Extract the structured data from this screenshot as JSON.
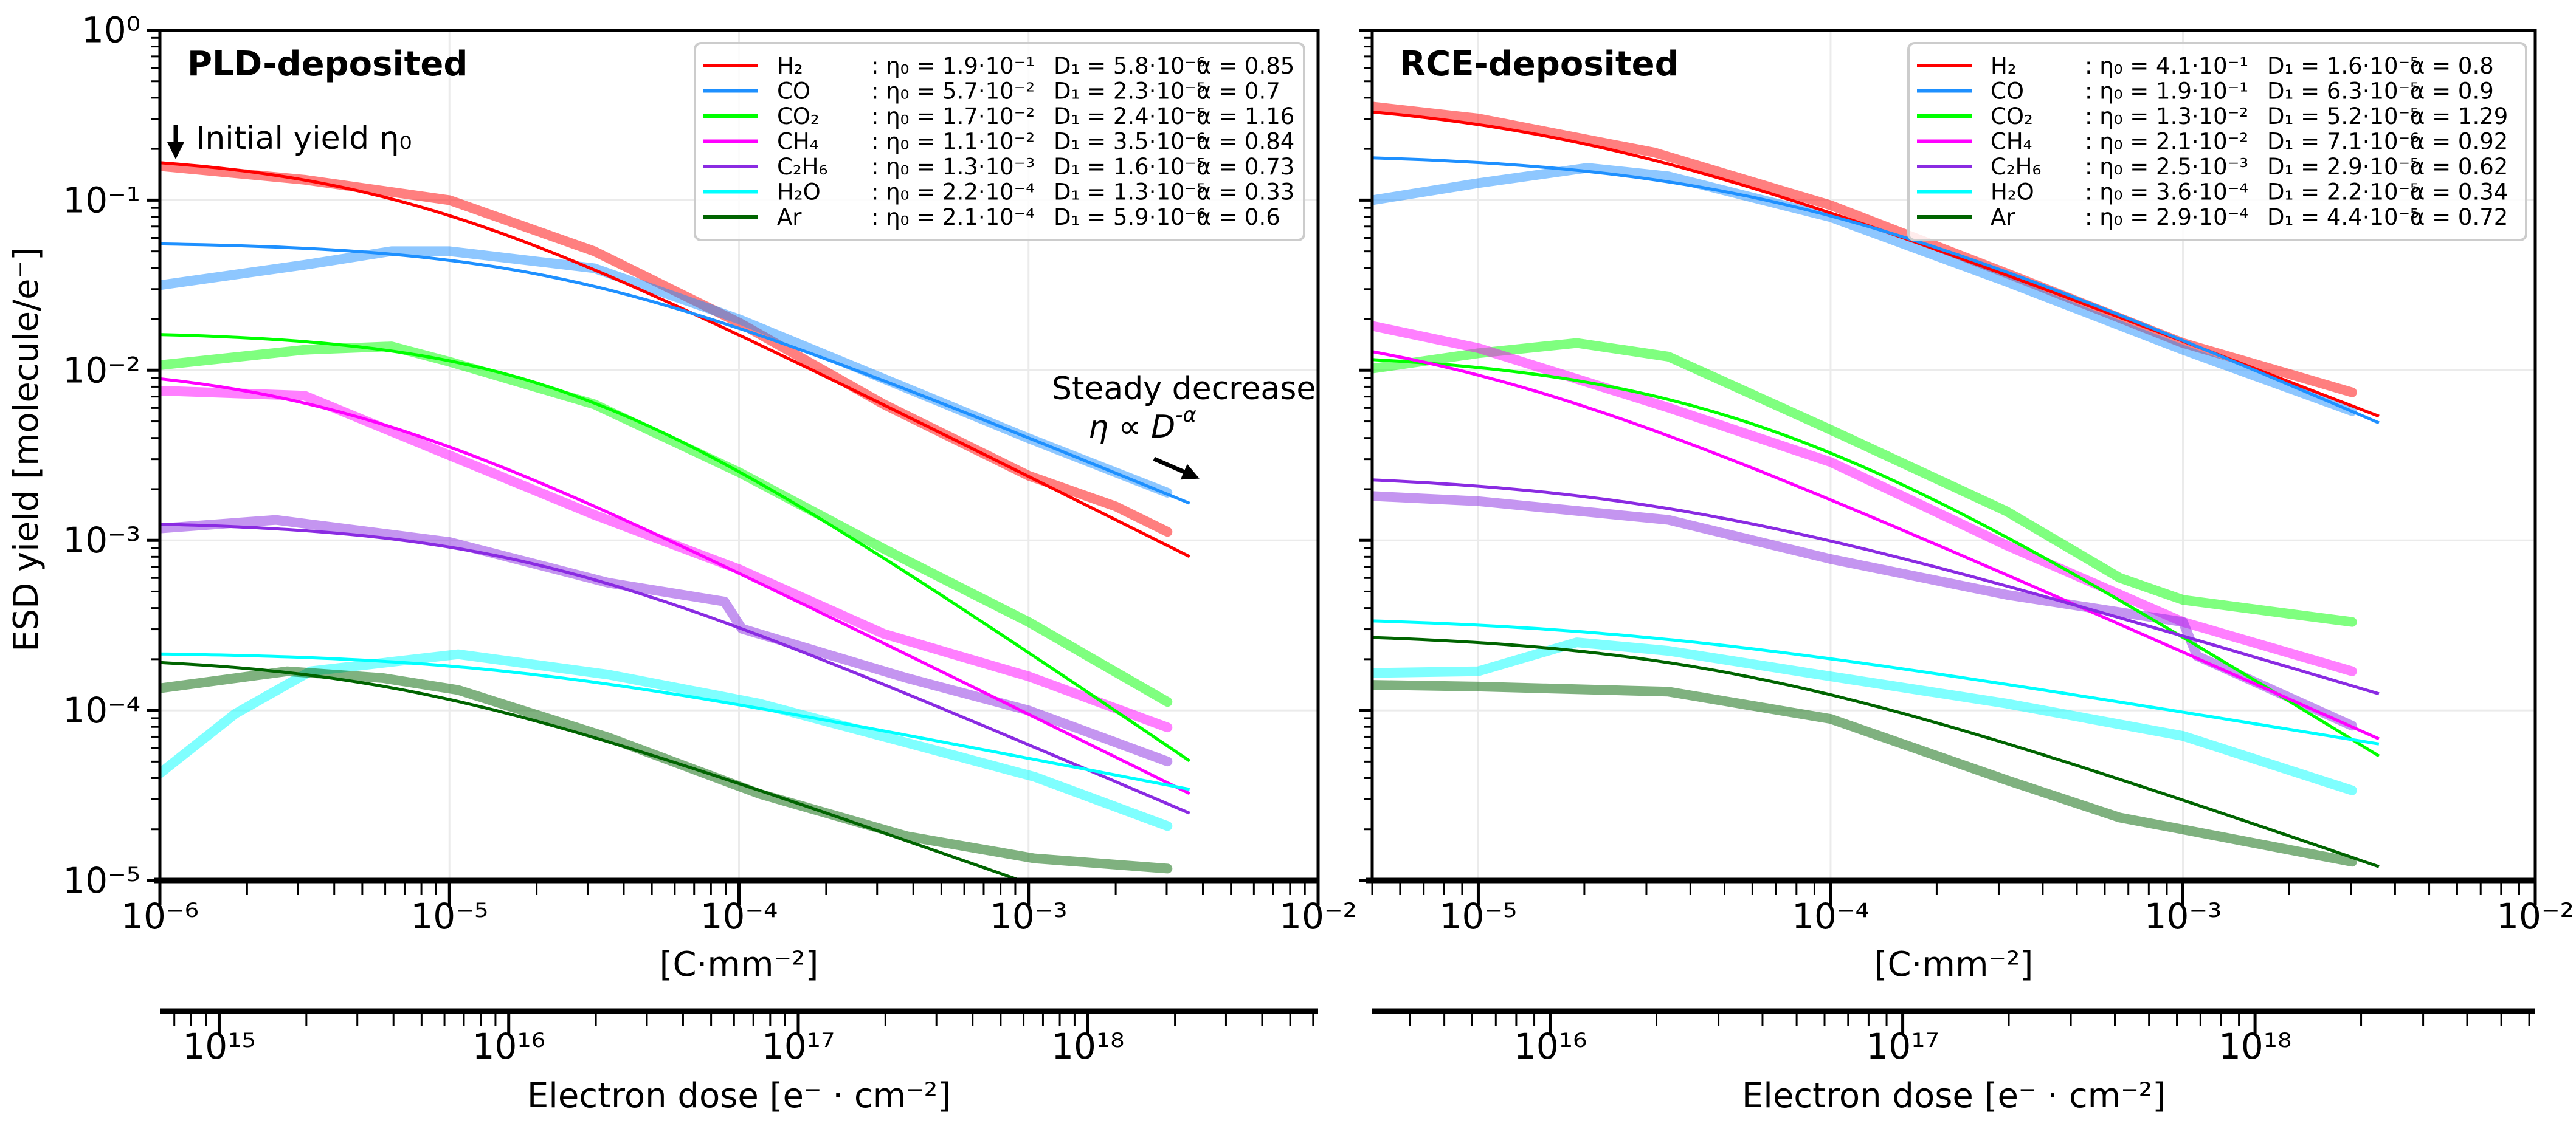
{
  "figure": {
    "ylabel": "ESD yield  [molecule/e⁻]",
    "annotations": {
      "initial_yield": "Initial yield η₀",
      "steady_decrease": "Steady decrease",
      "power_law": "η ∝ D",
      "power_law_exp": "-α"
    }
  },
  "chart_data": [
    {
      "type": "line",
      "title": "PLD-deposited",
      "xscale": "log",
      "yscale": "log",
      "xlim": [
        1e-06,
        0.01
      ],
      "ylim": [
        1e-05,
        1
      ],
      "xlabel": "[C·mm⁻²]",
      "ylabel": "ESD yield  [molecule/e⁻]",
      "grid": true,
      "legend_placement": "top-right",
      "fit_model": "eta = eta0 / (1 + D/D1)^alpha",
      "xtick_labels": [
        "10⁻⁶",
        "10⁻⁵",
        "10⁻⁴",
        "10⁻³",
        "10⁻²"
      ],
      "xtick_exponents": [
        -6,
        -5,
        -4,
        -3,
        -2
      ],
      "ytick_labels": [
        "10⁰",
        "10⁻¹",
        "10⁻²",
        "10⁻³",
        "10⁻⁴",
        "10⁻⁵"
      ],
      "ytick_exponents": [
        0,
        -1,
        -2,
        -3,
        -4,
        -5
      ],
      "secondary_x": {
        "label": "Electron dose [e⁻ · cm⁻²]",
        "conversion_factor": 6.242e+20,
        "tick_labels": [
          "10¹⁵",
          "10¹⁶",
          "10¹⁷",
          "10¹⁸"
        ],
        "tick_exponents": [
          15,
          16,
          17,
          18
        ]
      },
      "fit_xmax": 0.0036,
      "series": [
        {
          "name": "H₂",
          "color": "#ff0000",
          "eta0": 0.19,
          "D1": 5.8e-06,
          "alpha": 0.85,
          "eta0_label": "1.9·10⁻¹",
          "D1_label": "5.8·10⁻⁶",
          "alpha_label": "0.85",
          "measured_log10": [
            [
              -6,
              -0.8
            ],
            [
              -5.5,
              -0.88
            ],
            [
              -5,
              -1.0
            ],
            [
              -4.5,
              -1.3
            ],
            [
              -4,
              -1.72
            ],
            [
              -3.5,
              -2.2
            ],
            [
              -3,
              -2.62
            ],
            [
              -2.7,
              -2.8
            ],
            [
              -2.52,
              -2.95
            ]
          ]
        },
        {
          "name": "CO",
          "color": "#1e90ff",
          "eta0": 0.057,
          "D1": 2.3e-05,
          "alpha": 0.7,
          "eta0_label": "5.7·10⁻²",
          "D1_label": "2.3·10⁻⁵",
          "alpha_label": "0.7",
          "measured_log10": [
            [
              -6,
              -1.5
            ],
            [
              -5.5,
              -1.38
            ],
            [
              -5.2,
              -1.3
            ],
            [
              -5,
              -1.3
            ],
            [
              -4.5,
              -1.4
            ],
            [
              -4,
              -1.7
            ],
            [
              -3.5,
              -2.05
            ],
            [
              -3,
              -2.4
            ],
            [
              -2.52,
              -2.72
            ]
          ]
        },
        {
          "name": "CO₂",
          "color": "#00ff00",
          "eta0": 0.017,
          "D1": 2.4e-05,
          "alpha": 1.16,
          "eta0_label": "1.7·10⁻²",
          "D1_label": "2.4·10⁻⁵",
          "alpha_label": "1.16",
          "measured_log10": [
            [
              -6,
              -1.97
            ],
            [
              -5.5,
              -1.88
            ],
            [
              -5.2,
              -1.86
            ],
            [
              -5,
              -1.95
            ],
            [
              -4.5,
              -2.2
            ],
            [
              -4,
              -2.6
            ],
            [
              -3.5,
              -3.05
            ],
            [
              -3,
              -3.48
            ],
            [
              -2.52,
              -3.95
            ]
          ]
        },
        {
          "name": "CH₄",
          "color": "#ff00ff",
          "eta0": 0.011,
          "D1": 3.5e-06,
          "alpha": 0.84,
          "eta0_label": "1.1·10⁻²",
          "D1_label": "3.5·10⁻⁶",
          "alpha_label": "0.84",
          "measured_log10": [
            [
              -6,
              -2.12
            ],
            [
              -5.5,
              -2.15
            ],
            [
              -5,
              -2.5
            ],
            [
              -4.5,
              -2.85
            ],
            [
              -4,
              -3.17
            ],
            [
              -3.5,
              -3.55
            ],
            [
              -3,
              -3.8
            ],
            [
              -2.52,
              -4.1
            ]
          ]
        },
        {
          "name": "C₂H₆",
          "color": "#8a2be2",
          "eta0": 0.0013,
          "D1": 1.6e-05,
          "alpha": 0.73,
          "eta0_label": "1.3·10⁻³",
          "D1_label": "1.6·10⁻⁵",
          "alpha_label": "0.73",
          "measured_log10": [
            [
              -6,
              -2.93
            ],
            [
              -5.6,
              -2.88
            ],
            [
              -5,
              -3.01
            ],
            [
              -4.45,
              -3.25
            ],
            [
              -4.05,
              -3.36
            ],
            [
              -3.99,
              -3.52
            ],
            [
              -3.42,
              -3.81
            ],
            [
              -3,
              -4.0
            ],
            [
              -2.52,
              -4.3
            ]
          ]
        },
        {
          "name": "H₂O",
          "color": "#00ffff",
          "eta0": 0.00022,
          "D1": 1.3e-05,
          "alpha": 0.33,
          "eta0_label": "2.2·10⁻⁴",
          "D1_label": "1.3·10⁻⁵",
          "alpha_label": "0.33",
          "measured_log10": [
            [
              -6,
              -4.37
            ],
            [
              -5.74,
              -4.02
            ],
            [
              -5.48,
              -3.77
            ],
            [
              -4.97,
              -3.67
            ],
            [
              -4.45,
              -3.79
            ],
            [
              -3.93,
              -3.96
            ],
            [
              -3.42,
              -4.19
            ],
            [
              -2.98,
              -4.39
            ],
            [
              -2.52,
              -4.68
            ]
          ]
        },
        {
          "name": "Ar",
          "color": "#006400",
          "eta0": 0.00021,
          "D1": 5.9e-06,
          "alpha": 0.6,
          "eta0_label": "2.1·10⁻⁴",
          "D1_label": "5.9·10⁻⁶",
          "alpha_label": "0.6",
          "measured_log10": [
            [
              -6,
              -3.87
            ],
            [
              -5.56,
              -3.77
            ],
            [
              -5.23,
              -3.81
            ],
            [
              -4.97,
              -3.88
            ],
            [
              -4.45,
              -4.16
            ],
            [
              -3.93,
              -4.49
            ],
            [
              -3.42,
              -4.74
            ],
            [
              -2.98,
              -4.87
            ],
            [
              -2.52,
              -4.93
            ]
          ]
        }
      ]
    },
    {
      "type": "line",
      "title": "RCE-deposited",
      "xscale": "log",
      "yscale": "log",
      "xlim": [
        5e-06,
        0.01
      ],
      "ylim": [
        1e-05,
        1
      ],
      "xlabel": "[C·mm⁻²]",
      "grid": true,
      "legend_placement": "top-right",
      "fit_model": "eta = eta0 / (1 + D/D1)^alpha",
      "xtick_labels": [
        "10⁻⁵",
        "10⁻⁴",
        "10⁻³",
        "10⁻²"
      ],
      "xtick_exponents": [
        -5,
        -4,
        -3,
        -2
      ],
      "ytick_exponents": [
        0,
        -1,
        -2,
        -3,
        -4,
        -5
      ],
      "secondary_x": {
        "label": "Electron dose [e⁻ · cm⁻²]",
        "conversion_factor": 6.242e+20,
        "tick_labels": [
          "10¹⁶",
          "10¹⁷",
          "10¹⁸"
        ],
        "tick_exponents": [
          16,
          17,
          18
        ]
      },
      "fit_xmax": 0.0036,
      "series": [
        {
          "name": "H₂",
          "color": "#ff0000",
          "eta0": 0.41,
          "D1": 1.6e-05,
          "alpha": 0.8,
          "eta0_label": "4.1·10⁻¹",
          "D1_label": "1.6·10⁻⁵",
          "alpha_label": "0.8",
          "measured_log10": [
            [
              -5.3,
              -0.45
            ],
            [
              -5,
              -0.52
            ],
            [
              -4.5,
              -0.72
            ],
            [
              -4,
              -1.03
            ],
            [
              -3.5,
              -1.43
            ],
            [
              -3,
              -1.84
            ],
            [
              -2.52,
              -2.13
            ]
          ]
        },
        {
          "name": "CO",
          "color": "#1e90ff",
          "eta0": 0.19,
          "D1": 6.3e-05,
          "alpha": 0.9,
          "eta0_label": "1.9·10⁻¹",
          "D1_label": "6.3·10⁻⁵",
          "alpha_label": "0.9",
          "measured_log10": [
            [
              -5.3,
              -1.0
            ],
            [
              -5,
              -0.9
            ],
            [
              -4.69,
              -0.81
            ],
            [
              -4.46,
              -0.86
            ],
            [
              -4,
              -1.1
            ],
            [
              -3.5,
              -1.48
            ],
            [
              -3,
              -1.88
            ],
            [
              -2.52,
              -2.24
            ]
          ]
        },
        {
          "name": "CO₂",
          "color": "#00ff00",
          "eta0": 0.013,
          "D1": 5.2e-05,
          "alpha": 1.29,
          "eta0_label": "1.3·10⁻²",
          "D1_label": "5.2·10⁻⁵",
          "alpha_label": "1.29",
          "measured_log10": [
            [
              -5.3,
              -1.99
            ],
            [
              -5,
              -1.9
            ],
            [
              -4.72,
              -1.84
            ],
            [
              -4.46,
              -1.92
            ],
            [
              -4,
              -2.35
            ],
            [
              -3.5,
              -2.83
            ],
            [
              -3.18,
              -3.22
            ],
            [
              -3,
              -3.35
            ],
            [
              -2.52,
              -3.48
            ]
          ]
        },
        {
          "name": "CH₄",
          "color": "#ff00ff",
          "eta0": 0.021,
          "D1": 7.1e-06,
          "alpha": 0.92,
          "eta0_label": "2.1·10⁻²",
          "D1_label": "7.1·10⁻⁶",
          "alpha_label": "0.92",
          "measured_log10": [
            [
              -5.3,
              -1.74
            ],
            [
              -5,
              -1.87
            ],
            [
              -4.46,
              -2.22
            ],
            [
              -4,
              -2.54
            ],
            [
              -3.5,
              -3.03
            ],
            [
              -3,
              -3.48
            ],
            [
              -2.52,
              -3.77
            ]
          ]
        },
        {
          "name": "C₂H₆",
          "color": "#8a2be2",
          "eta0": 0.0025,
          "D1": 2.9e-05,
          "alpha": 0.62,
          "eta0_label": "2.5·10⁻³",
          "D1_label": "2.9·10⁻⁵",
          "alpha_label": "0.62",
          "measured_log10": [
            [
              -5.3,
              -2.74
            ],
            [
              -5,
              -2.77
            ],
            [
              -4.46,
              -2.88
            ],
            [
              -4,
              -3.11
            ],
            [
              -3.5,
              -3.32
            ],
            [
              -3,
              -3.48
            ],
            [
              -2.96,
              -3.68
            ],
            [
              -2.52,
              -4.09
            ]
          ]
        },
        {
          "name": "H₂O",
          "color": "#00ffff",
          "eta0": 0.00036,
          "D1": 2.2e-05,
          "alpha": 0.34,
          "eta0_label": "3.6·10⁻⁴",
          "D1_label": "2.2·10⁻⁵",
          "alpha_label": "0.34",
          "measured_log10": [
            [
              -5.3,
              -3.78
            ],
            [
              -5,
              -3.77
            ],
            [
              -4.72,
              -3.6
            ],
            [
              -4.46,
              -3.65
            ],
            [
              -4,
              -3.8
            ],
            [
              -3.5,
              -3.96
            ],
            [
              -3,
              -4.15
            ],
            [
              -2.52,
              -4.47
            ]
          ]
        },
        {
          "name": "Ar",
          "color": "#006400",
          "eta0": 0.00029,
          "D1": 4.4e-05,
          "alpha": 0.72,
          "eta0_label": "2.9·10⁻⁴",
          "D1_label": "4.4·10⁻⁵",
          "alpha_label": "0.72",
          "measured_log10": [
            [
              -5.3,
              -3.85
            ],
            [
              -5,
              -3.86
            ],
            [
              -4.46,
              -3.89
            ],
            [
              -4,
              -4.05
            ],
            [
              -3.5,
              -4.41
            ],
            [
              -3.18,
              -4.63
            ],
            [
              -3,
              -4.7
            ],
            [
              -2.52,
              -4.89
            ]
          ]
        }
      ]
    }
  ]
}
